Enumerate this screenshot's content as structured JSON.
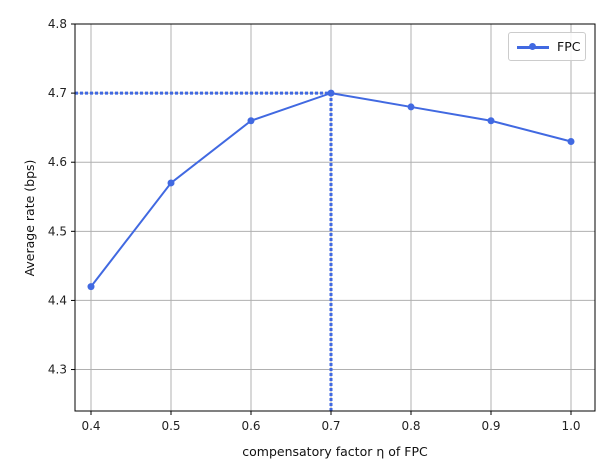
{
  "chart_data": {
    "type": "line",
    "title": "",
    "xlabel": "compensatory factor η of FPC",
    "ylabel": "Average rate (bps)",
    "x": [
      0.4,
      0.5,
      0.6,
      0.7,
      0.8,
      0.9,
      1.0
    ],
    "series": [
      {
        "name": "FPC",
        "values": [
          4.42,
          4.57,
          4.66,
          4.7,
          4.68,
          4.66,
          4.63
        ],
        "color": "#4169e1",
        "marker": "circle"
      }
    ],
    "xticks": [
      "0.4",
      "0.5",
      "0.6",
      "0.7",
      "0.8",
      "0.9",
      "1.0"
    ],
    "yticks": [
      "4.3",
      "4.4",
      "4.5",
      "4.6",
      "4.7",
      "4.8"
    ],
    "xlim": [
      0.38,
      1.03
    ],
    "ylim": [
      4.24,
      4.8
    ],
    "grid": true,
    "legend_position": "upper right",
    "annotations": [
      {
        "type": "hline-dotted",
        "y": 4.7,
        "x_from": 0.38,
        "x_to": 0.7,
        "color": "#4169e1"
      },
      {
        "type": "vline-dotted",
        "x": 0.7,
        "y_from": 4.24,
        "y_to": 4.7,
        "color": "#4169e1"
      }
    ]
  },
  "legend": {
    "label": "FPC"
  }
}
